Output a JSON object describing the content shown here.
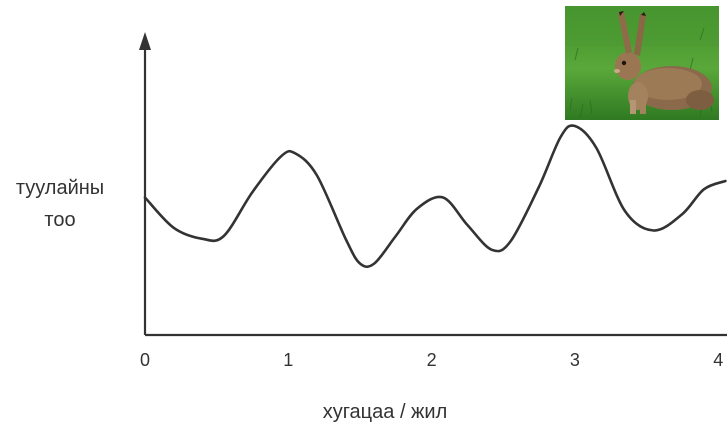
{
  "chart_data": {
    "type": "line",
    "title": "",
    "xlabel": "хугацаа / жил",
    "ylabel": [
      "туулайны",
      "тоо"
    ],
    "x_ticks": [
      "0",
      "1",
      "2",
      "3",
      "4"
    ],
    "xlim": [
      0,
      4.05
    ],
    "ylim": [
      0,
      10
    ],
    "y_ticks_shown": false,
    "grid": false,
    "legend": "none",
    "series": [
      {
        "x": [
          0,
          0.2,
          0.4,
          0.55,
          0.75,
          0.95,
          1.05,
          1.2,
          1.4,
          1.5,
          1.6,
          1.75,
          1.9,
          2.08,
          2.25,
          2.42,
          2.55,
          2.75,
          2.9,
          3.0,
          3.15,
          3.35,
          3.55,
          3.75,
          3.9,
          4.05
        ],
        "y": [
          5.0,
          3.9,
          3.5,
          3.6,
          5.2,
          6.5,
          6.6,
          5.8,
          3.5,
          2.6,
          2.6,
          3.6,
          4.6,
          5.0,
          4.0,
          3.1,
          3.4,
          5.4,
          7.2,
          7.6,
          6.8,
          4.5,
          3.8,
          4.4,
          5.3,
          5.6
        ]
      }
    ],
    "line_color": "#333333",
    "axis_color": "#333333"
  },
  "image": {
    "subject": "hare-photo"
  }
}
